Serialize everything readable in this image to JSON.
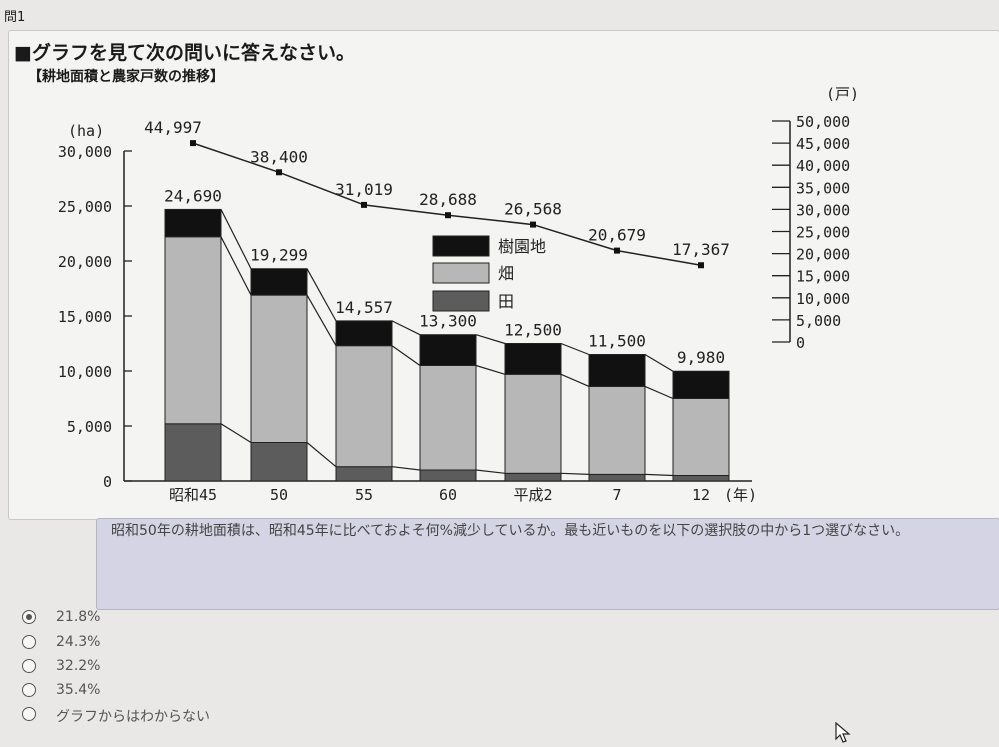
{
  "question_number": "問1",
  "question_title": "■グラフを見て次の問いに答えなさい。",
  "chart_data": {
    "type": "bar",
    "title": "【耕地面積と農家戸数の推移】",
    "categories": [
      "昭和45",
      "50",
      "55",
      "60",
      "平成2",
      "7",
      "12"
    ],
    "x_unit": "(年)",
    "left_axis": {
      "unit": "(ha)",
      "ticks": [
        "0",
        "5,000",
        "10,000",
        "15,000",
        "20,000",
        "25,000",
        "30,000"
      ],
      "ylim": [
        0,
        30000
      ]
    },
    "right_axis": {
      "unit": "(戸)",
      "ticks": [
        "0",
        "5,000",
        "10,000",
        "15,000",
        "20,000",
        "25,000",
        "30,000",
        "35,000",
        "40,000",
        "45,000",
        "50,000"
      ],
      "ylim": [
        0,
        50000
      ]
    },
    "series": [
      {
        "name": "田",
        "color": "#5c5c5c",
        "values": [
          5200,
          3500,
          1300,
          1000,
          700,
          600,
          500
        ]
      },
      {
        "name": "畑",
        "color": "#b7b7b7",
        "values": [
          17000,
          13400,
          11000,
          9500,
          9000,
          8000,
          7000
        ]
      },
      {
        "name": "樹園地",
        "color": "#111111",
        "values": [
          2490,
          2399,
          2257,
          2800,
          2800,
          2900,
          2480
        ]
      }
    ],
    "totals": [
      24690,
      19299,
      14557,
      13300,
      12500,
      11500,
      9980
    ],
    "total_labels": [
      "24,690",
      "19,299",
      "14,557",
      "13,300",
      "12,500",
      "11,500",
      "9,980"
    ],
    "line": {
      "name": "農家戸数",
      "values": [
        44997,
        38400,
        31019,
        28688,
        26568,
        20679,
        17367
      ],
      "labels": [
        "44,997",
        "38,400",
        "31,019",
        "28,688",
        "26,568",
        "20,679",
        "17,367"
      ]
    },
    "legend_order": [
      "樹園地",
      "畑",
      "田"
    ]
  },
  "prompt": "昭和50年の耕地面積は、昭和45年に比べておよそ何%減少しているか。最も近いものを以下の選択肢の中から1つ選びなさい。",
  "options": [
    {
      "label": "21.8%",
      "checked": true
    },
    {
      "label": "24.3%",
      "checked": false
    },
    {
      "label": "32.2%",
      "checked": false
    },
    {
      "label": "35.4%",
      "checked": false
    },
    {
      "label": "グラフからはわからない",
      "checked": false
    }
  ]
}
